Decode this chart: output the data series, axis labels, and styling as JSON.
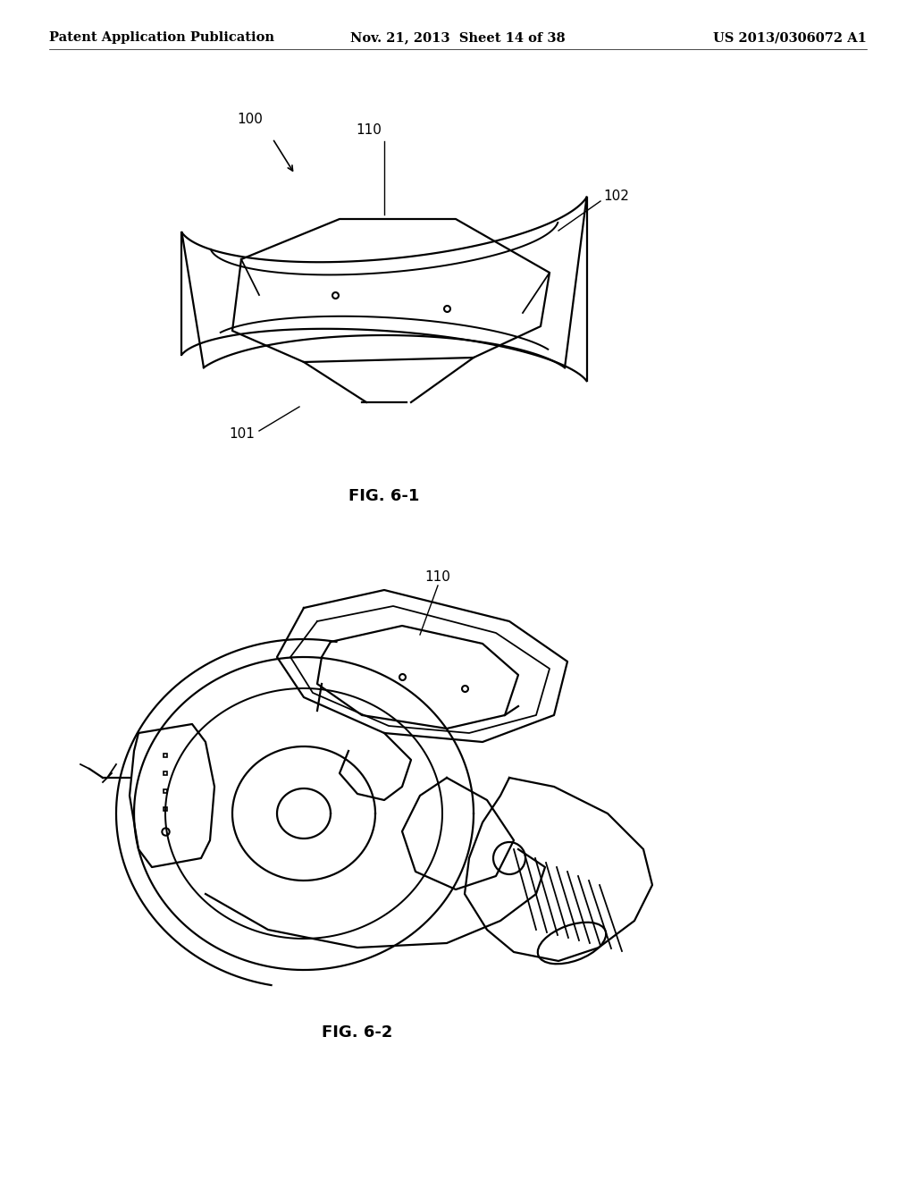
{
  "page_title_left": "Patent Application Publication",
  "page_title_mid": "Nov. 21, 2013  Sheet 14 of 38",
  "page_title_right": "US 2013/0306072 A1",
  "fig1_label": "FIG. 6-1",
  "fig2_label": "FIG. 6-2",
  "label_100": "100",
  "label_101": "101",
  "label_102": "102",
  "label_110_top": "110",
  "label_110_bot": "110",
  "background": "#ffffff",
  "line_color": "#000000",
  "font_size_header": 10.5,
  "font_size_label": 11,
  "font_size_fig": 13
}
